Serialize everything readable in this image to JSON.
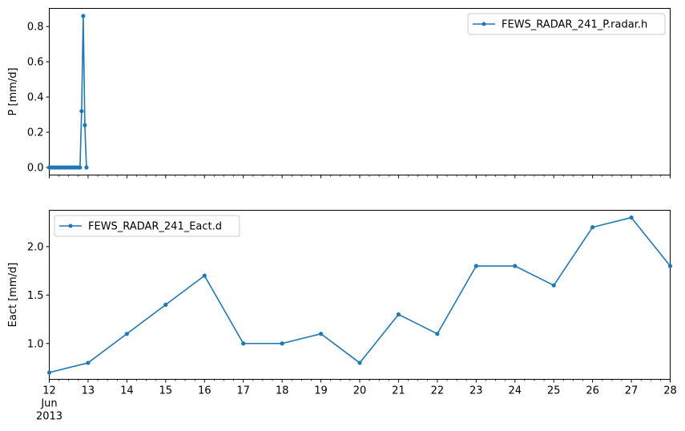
{
  "chart_data": [
    {
      "type": "line",
      "ylabel": "P [mm/d]",
      "xlim": [
        "2013-06-12",
        "2013-06-28"
      ],
      "ylim": [
        -0.043,
        0.903
      ],
      "yticks": [
        0.0,
        0.2,
        0.4,
        0.6,
        0.8
      ],
      "ytick_labels": [
        "0.0",
        "0.2",
        "0.4",
        "0.6",
        "0.8"
      ],
      "legend_position": "upper-right",
      "grid": false,
      "x_tick_labels_visible": false,
      "series": [
        {
          "name": "FEWS_RADAR_241_P.radar.h",
          "color": "#1f77b4",
          "marker": "circle",
          "x": [
            "2013-06-12 00:00",
            "2013-06-12 01:00",
            "2013-06-12 02:00",
            "2013-06-12 03:00",
            "2013-06-12 04:00",
            "2013-06-12 05:00",
            "2013-06-12 06:00",
            "2013-06-12 07:00",
            "2013-06-12 08:00",
            "2013-06-12 09:00",
            "2013-06-12 10:00",
            "2013-06-12 11:00",
            "2013-06-12 12:00",
            "2013-06-12 13:00",
            "2013-06-12 14:00",
            "2013-06-12 15:00",
            "2013-06-12 16:00",
            "2013-06-12 17:00",
            "2013-06-12 18:00",
            "2013-06-12 19:00",
            "2013-06-12 20:00",
            "2013-06-12 21:00",
            "2013-06-12 22:00",
            "2013-06-12 23:00"
          ],
          "values": [
            0,
            0,
            0,
            0,
            0,
            0,
            0,
            0,
            0,
            0,
            0,
            0,
            0,
            0,
            0,
            0,
            0,
            0,
            0,
            0,
            0.32,
            0.86,
            0.24,
            0
          ]
        }
      ]
    },
    {
      "type": "line",
      "ylabel": "Eact [mm/d]",
      "xlim": [
        "2013-06-12",
        "2013-06-28"
      ],
      "ylim": [
        0.63,
        2.375
      ],
      "yticks": [
        1.0,
        1.5,
        2.0
      ],
      "ytick_labels": [
        "1.0",
        "1.5",
        "2.0"
      ],
      "legend_position": "upper-left",
      "grid": false,
      "series": [
        {
          "name": "FEWS_RADAR_241_Eact.d",
          "color": "#1f77b4",
          "marker": "circle",
          "x": [
            "2013-06-12",
            "2013-06-13",
            "2013-06-14",
            "2013-06-15",
            "2013-06-16",
            "2013-06-17",
            "2013-06-18",
            "2013-06-19",
            "2013-06-20",
            "2013-06-21",
            "2013-06-22",
            "2013-06-23",
            "2013-06-24",
            "2013-06-25",
            "2013-06-26",
            "2013-06-27",
            "2013-06-28"
          ],
          "values": [
            0.7,
            0.8,
            1.1,
            1.4,
            1.7,
            1.0,
            1.0,
            1.1,
            0.8,
            1.3,
            1.1,
            1.8,
            1.8,
            1.6,
            2.2,
            2.3,
            1.8
          ]
        }
      ]
    }
  ],
  "x_axis": {
    "ticks": [
      "2013-06-12",
      "2013-06-13",
      "2013-06-14",
      "2013-06-15",
      "2013-06-16",
      "2013-06-17",
      "2013-06-18",
      "2013-06-19",
      "2013-06-20",
      "2013-06-21",
      "2013-06-22",
      "2013-06-23",
      "2013-06-24",
      "2013-06-25",
      "2013-06-26",
      "2013-06-27",
      "2013-06-28"
    ],
    "tick_labels": [
      "12",
      "13",
      "14",
      "15",
      "16",
      "17",
      "18",
      "19",
      "20",
      "21",
      "22",
      "23",
      "24",
      "25",
      "26",
      "27",
      "28"
    ],
    "month_label": "Jun",
    "year_label": "2013"
  }
}
